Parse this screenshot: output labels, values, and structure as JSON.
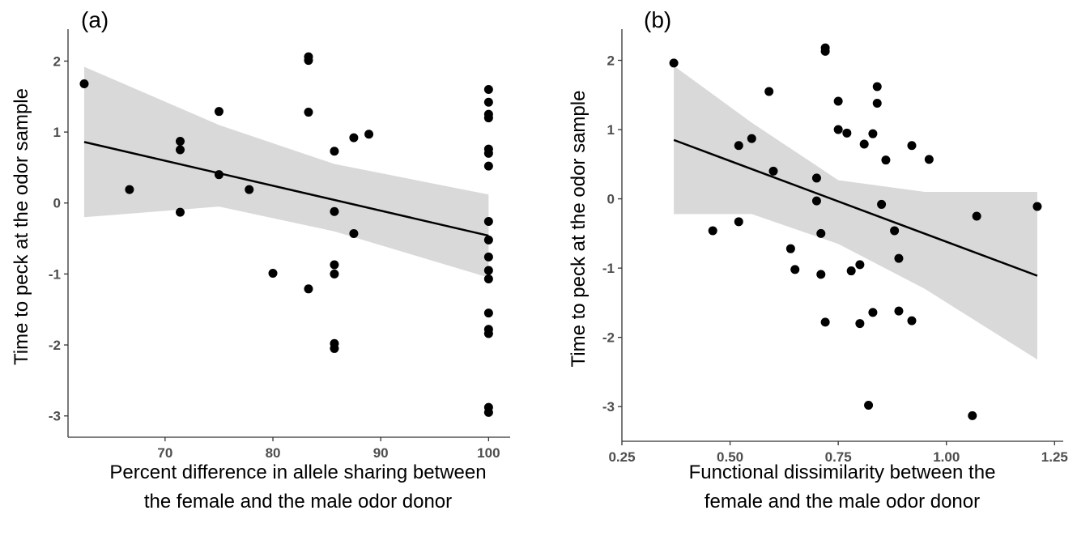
{
  "colors": {
    "points": "#000000",
    "fit_line": "#000000",
    "confidence_band": "#d9d9d9",
    "axis": "#333333",
    "tick_label": "#4d4d4d"
  },
  "chart_data": [
    {
      "type": "scatter",
      "panel_label": "(a)",
      "xlabel": [
        "Percent difference in allele sharing between",
        "the female and the male odor donor"
      ],
      "ylabel": "Time to peck at the odor sample",
      "xlim": [
        61,
        102
      ],
      "ylim": [
        -3.3,
        2.45
      ],
      "xticks": [
        70,
        80,
        90,
        100
      ],
      "yticks": [
        -3,
        -2,
        -1,
        0,
        1,
        2
      ],
      "grid": false,
      "points": [
        [
          62.5,
          1.68
        ],
        [
          66.7,
          0.19
        ],
        [
          71.4,
          0.87
        ],
        [
          71.4,
          0.75
        ],
        [
          71.4,
          -0.13
        ],
        [
          75.0,
          1.29
        ],
        [
          75.0,
          0.4
        ],
        [
          77.8,
          0.19
        ],
        [
          80.0,
          -0.99
        ],
        [
          83.3,
          2.06
        ],
        [
          83.3,
          2.01
        ],
        [
          83.3,
          1.28
        ],
        [
          83.3,
          -1.21
        ],
        [
          85.7,
          0.73
        ],
        [
          85.7,
          -0.12
        ],
        [
          85.7,
          -0.87
        ],
        [
          85.7,
          -1.0
        ],
        [
          85.7,
          -1.98
        ],
        [
          85.7,
          -2.05
        ],
        [
          87.5,
          0.92
        ],
        [
          87.5,
          -0.43
        ],
        [
          88.9,
          0.97
        ],
        [
          100,
          1.6
        ],
        [
          100,
          1.42
        ],
        [
          100,
          1.25
        ],
        [
          100,
          1.2
        ],
        [
          100,
          0.76
        ],
        [
          100,
          0.7
        ],
        [
          100,
          0.52
        ],
        [
          100,
          -0.26
        ],
        [
          100,
          -0.52
        ],
        [
          100,
          -0.76
        ],
        [
          100,
          -0.95
        ],
        [
          100,
          -1.07
        ],
        [
          100,
          -1.55
        ],
        [
          100,
          -1.78
        ],
        [
          100,
          -1.84
        ],
        [
          100,
          -2.88
        ],
        [
          100,
          -2.95
        ]
      ],
      "fit_line": [
        [
          62.5,
          0.86
        ],
        [
          100,
          -0.46
        ]
      ],
      "confidence_band": {
        "x": [
          62.5,
          75,
          85.7,
          100
        ],
        "upper": [
          1.92,
          1.1,
          0.55,
          0.12
        ],
        "lower": [
          -0.2,
          -0.05,
          -0.4,
          -1.05
        ]
      }
    },
    {
      "type": "scatter",
      "panel_label": "(b)",
      "xlabel": [
        "Functional dissimilarity between the",
        "female and the male odor donor"
      ],
      "ylabel": "Time to peck at the odor sample",
      "xlim": [
        0.25,
        1.27
      ],
      "ylim": [
        -3.5,
        2.45
      ],
      "xticks": [
        "0.25",
        "0.50",
        "0.75",
        "1.00",
        "1.25"
      ],
      "yticks": [
        -3,
        -2,
        -1,
        0,
        1,
        2
      ],
      "grid": false,
      "points": [
        [
          0.37,
          1.96
        ],
        [
          0.46,
          -0.46
        ],
        [
          0.52,
          -0.33
        ],
        [
          0.52,
          0.77
        ],
        [
          0.55,
          0.87
        ],
        [
          0.59,
          1.55
        ],
        [
          0.6,
          0.4
        ],
        [
          0.64,
          -0.72
        ],
        [
          0.65,
          -1.02
        ],
        [
          0.7,
          0.3
        ],
        [
          0.7,
          -0.03
        ],
        [
          0.71,
          -0.5
        ],
        [
          0.71,
          -1.09
        ],
        [
          0.72,
          2.18
        ],
        [
          0.72,
          2.13
        ],
        [
          0.72,
          -1.78
        ],
        [
          0.75,
          1.41
        ],
        [
          0.75,
          1.0
        ],
        [
          0.77,
          0.95
        ],
        [
          0.78,
          -1.04
        ],
        [
          0.8,
          -0.95
        ],
        [
          0.8,
          -1.8
        ],
        [
          0.81,
          0.79
        ],
        [
          0.82,
          -2.98
        ],
        [
          0.83,
          0.94
        ],
        [
          0.83,
          -1.64
        ],
        [
          0.84,
          1.62
        ],
        [
          0.84,
          1.38
        ],
        [
          0.85,
          -0.08
        ],
        [
          0.86,
          0.56
        ],
        [
          0.88,
          -0.46
        ],
        [
          0.89,
          -0.86
        ],
        [
          0.89,
          -1.62
        ],
        [
          0.92,
          0.77
        ],
        [
          0.92,
          -1.76
        ],
        [
          0.96,
          0.57
        ],
        [
          1.06,
          -3.13
        ],
        [
          1.07,
          -0.25
        ],
        [
          1.21,
          -0.11
        ]
      ],
      "fit_line": [
        [
          0.37,
          0.85
        ],
        [
          1.21,
          -1.11
        ]
      ],
      "confidence_band": {
        "x": [
          0.37,
          0.55,
          0.75,
          0.95,
          1.21
        ],
        "upper": [
          1.92,
          1.1,
          0.27,
          0.1,
          0.1
        ],
        "lower": [
          -0.22,
          -0.22,
          -0.65,
          -1.3,
          -2.32
        ]
      }
    }
  ]
}
